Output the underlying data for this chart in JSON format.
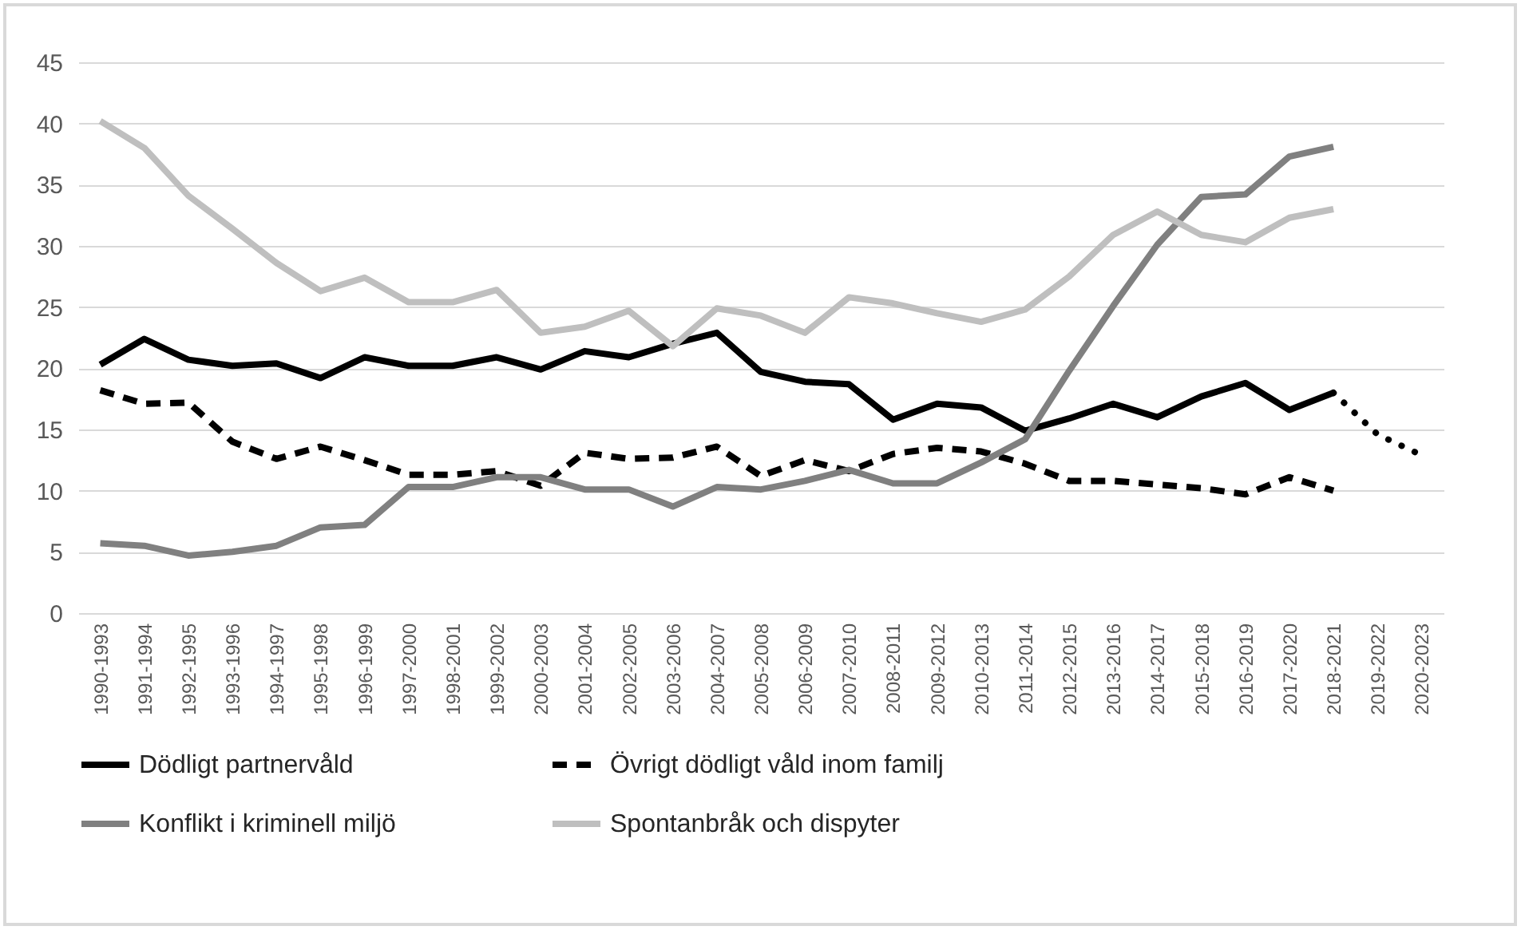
{
  "chart_data": {
    "type": "line",
    "categories": [
      "1990-1993",
      "1991-1994",
      "1992-1995",
      "1993-1996",
      "1994-1997",
      "1995-1998",
      "1996-1999",
      "1997-2000",
      "1998-2001",
      "1999-2002",
      "2000-2003",
      "2001-2004",
      "2002-2005",
      "2003-2006",
      "2004-2007",
      "2005-2008",
      "2006-2009",
      "2007-2010",
      "2008-2011",
      "2009-2012",
      "2010-2013",
      "2011-2014",
      "2012-2015",
      "2013-2016",
      "2014-2017",
      "2015-2018",
      "2016-2019",
      "2017-2020",
      "2018-2021",
      "2019-2022",
      "2020-2023"
    ],
    "series": [
      {
        "name": "Dödligt partnervåld",
        "color": "#000000",
        "line_style": "solid",
        "values": [
          20.3,
          22.4,
          20.7,
          20.2,
          20.4,
          19.2,
          20.9,
          20.2,
          20.2,
          20.9,
          19.9,
          21.4,
          20.9,
          22.0,
          22.9,
          19.7,
          18.9,
          18.7,
          15.8,
          17.1,
          16.8,
          14.9,
          15.9,
          17.1,
          16.0,
          17.7,
          18.8,
          16.6,
          18.0,
          null,
          null
        ]
      },
      {
        "name": "Övrigt dödligt våld inom familj",
        "color": "#000000",
        "line_style": "dashed",
        "values": [
          18.2,
          17.1,
          17.2,
          14.0,
          12.6,
          13.6,
          12.5,
          11.3,
          11.3,
          11.6,
          10.4,
          13.1,
          12.6,
          12.7,
          13.6,
          11.2,
          12.5,
          11.6,
          13.0,
          13.5,
          13.2,
          12.2,
          10.8,
          10.8,
          10.5,
          10.2,
          9.7,
          11.1,
          10.0,
          null,
          null
        ]
      },
      {
        "name": "Konflikt i kriminell miljö",
        "color": "#808080",
        "line_style": "solid",
        "values": [
          5.7,
          5.5,
          4.7,
          5.0,
          5.5,
          7.0,
          7.2,
          10.3,
          10.3,
          11.1,
          11.1,
          10.1,
          10.1,
          8.7,
          10.3,
          10.1,
          10.8,
          11.7,
          10.6,
          10.6,
          12.3,
          14.2,
          19.8,
          25.1,
          30.1,
          34.0,
          34.2,
          37.3,
          38.1,
          null,
          null
        ]
      },
      {
        "name": "Spontanbråk och dispyter",
        "color": "#bfbfbf",
        "line_style": "solid",
        "values": [
          40.2,
          38.0,
          34.1,
          31.4,
          28.6,
          26.3,
          27.4,
          25.4,
          25.4,
          26.4,
          22.9,
          23.4,
          24.7,
          21.8,
          24.9,
          24.3,
          22.9,
          25.8,
          25.3,
          24.5,
          23.8,
          24.8,
          27.5,
          30.9,
          32.8,
          30.9,
          30.3,
          32.3,
          33.0,
          null,
          null
        ]
      },
      {
        "color": "#000000",
        "line_style": "dotted",
        "values": [
          null,
          null,
          null,
          null,
          null,
          null,
          null,
          null,
          null,
          null,
          null,
          null,
          null,
          null,
          null,
          null,
          null,
          null,
          null,
          null,
          null,
          null,
          null,
          null,
          null,
          null,
          null,
          null,
          18.0,
          14.6,
          12.9
        ]
      }
    ],
    "ylim": [
      0,
      45
    ],
    "yticks": [
      0,
      5,
      10,
      15,
      20,
      25,
      30,
      35,
      40,
      45
    ],
    "grid": "y",
    "legend": "bottom"
  }
}
